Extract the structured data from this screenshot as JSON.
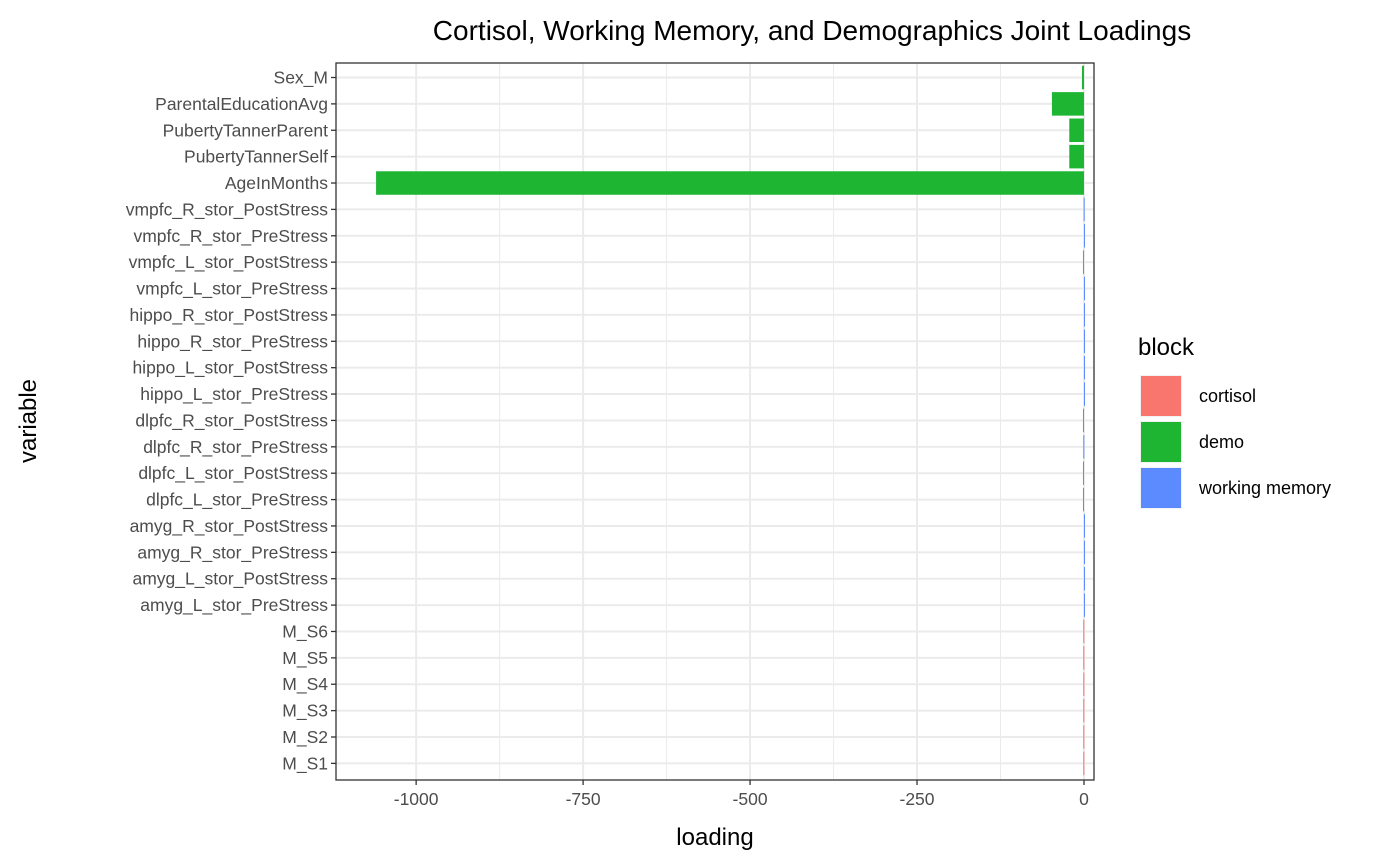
{
  "chart_data": {
    "type": "bar",
    "orientation": "horizontal",
    "title": "Cortisol, Working Memory, and Demographics Joint Loadings",
    "xlabel": "loading",
    "ylabel": "variable",
    "xlim": [
      -1120,
      15
    ],
    "xticks": [
      -1000,
      -750,
      -500,
      -250,
      0
    ],
    "xtick_labels": [
      "-1000",
      "-750",
      "-500",
      "-250",
      "0"
    ],
    "grid": true,
    "legend": {
      "title": "block",
      "position": "right",
      "entries": [
        {
          "label": "cortisol",
          "color": "#F8766D"
        },
        {
          "label": "demo",
          "color": "#1DB532"
        },
        {
          "label": "working memory",
          "color": "#5B8BFF"
        }
      ]
    },
    "bars": [
      {
        "variable": "Sex_M",
        "value": -3,
        "block": "demo"
      },
      {
        "variable": "ParentalEducationAvg",
        "value": -48,
        "block": "demo"
      },
      {
        "variable": "PubertyTannerParent",
        "value": -22,
        "block": "demo"
      },
      {
        "variable": "PubertyTannerSelf",
        "value": -22,
        "block": "demo"
      },
      {
        "variable": "AgeInMonths",
        "value": -1060,
        "block": "demo"
      },
      {
        "variable": "vmpfc_R_stor_PostStress",
        "value": -0.5,
        "block": "working memory"
      },
      {
        "variable": "vmpfc_R_stor_PreStress",
        "value": 1.5,
        "block": "working memory"
      },
      {
        "variable": "vmpfc_L_stor_PostStress",
        "value": -1.5,
        "block": "working memory"
      },
      {
        "variable": "vmpfc_L_stor_PreStress",
        "value": 0.6,
        "block": "working memory"
      },
      {
        "variable": "hippo_R_stor_PostStress",
        "value": 0.5,
        "block": "working memory"
      },
      {
        "variable": "hippo_R_stor_PreStress",
        "value": 0.5,
        "block": "working memory"
      },
      {
        "variable": "hippo_L_stor_PostStress",
        "value": 0.5,
        "block": "working memory"
      },
      {
        "variable": "hippo_L_stor_PreStress",
        "value": 0.5,
        "block": "working memory"
      },
      {
        "variable": "dlpfc_R_stor_PostStress",
        "value": -1.5,
        "block": "working memory"
      },
      {
        "variable": "dlpfc_R_stor_PreStress",
        "value": -1.0,
        "block": "working memory"
      },
      {
        "variable": "dlpfc_L_stor_PostStress",
        "value": -1.5,
        "block": "working memory"
      },
      {
        "variable": "dlpfc_L_stor_PreStress",
        "value": -1.5,
        "block": "working memory"
      },
      {
        "variable": "amyg_R_stor_PostStress",
        "value": 0.5,
        "block": "working memory"
      },
      {
        "variable": "amyg_R_stor_PreStress",
        "value": 0.6,
        "block": "working memory"
      },
      {
        "variable": "amyg_L_stor_PostStress",
        "value": 0.5,
        "block": "working memory"
      },
      {
        "variable": "amyg_L_stor_PreStress",
        "value": 0.6,
        "block": "working memory"
      },
      {
        "variable": "M_S6",
        "value": -1.0,
        "block": "cortisol"
      },
      {
        "variable": "M_S5",
        "value": -1.0,
        "block": "cortisol"
      },
      {
        "variable": "M_S4",
        "value": -1.0,
        "block": "cortisol"
      },
      {
        "variable": "M_S3",
        "value": -1.0,
        "block": "cortisol"
      },
      {
        "variable": "M_S2",
        "value": -1.0,
        "block": "cortisol"
      },
      {
        "variable": "M_S1",
        "value": -1.0,
        "block": "cortisol"
      }
    ]
  }
}
